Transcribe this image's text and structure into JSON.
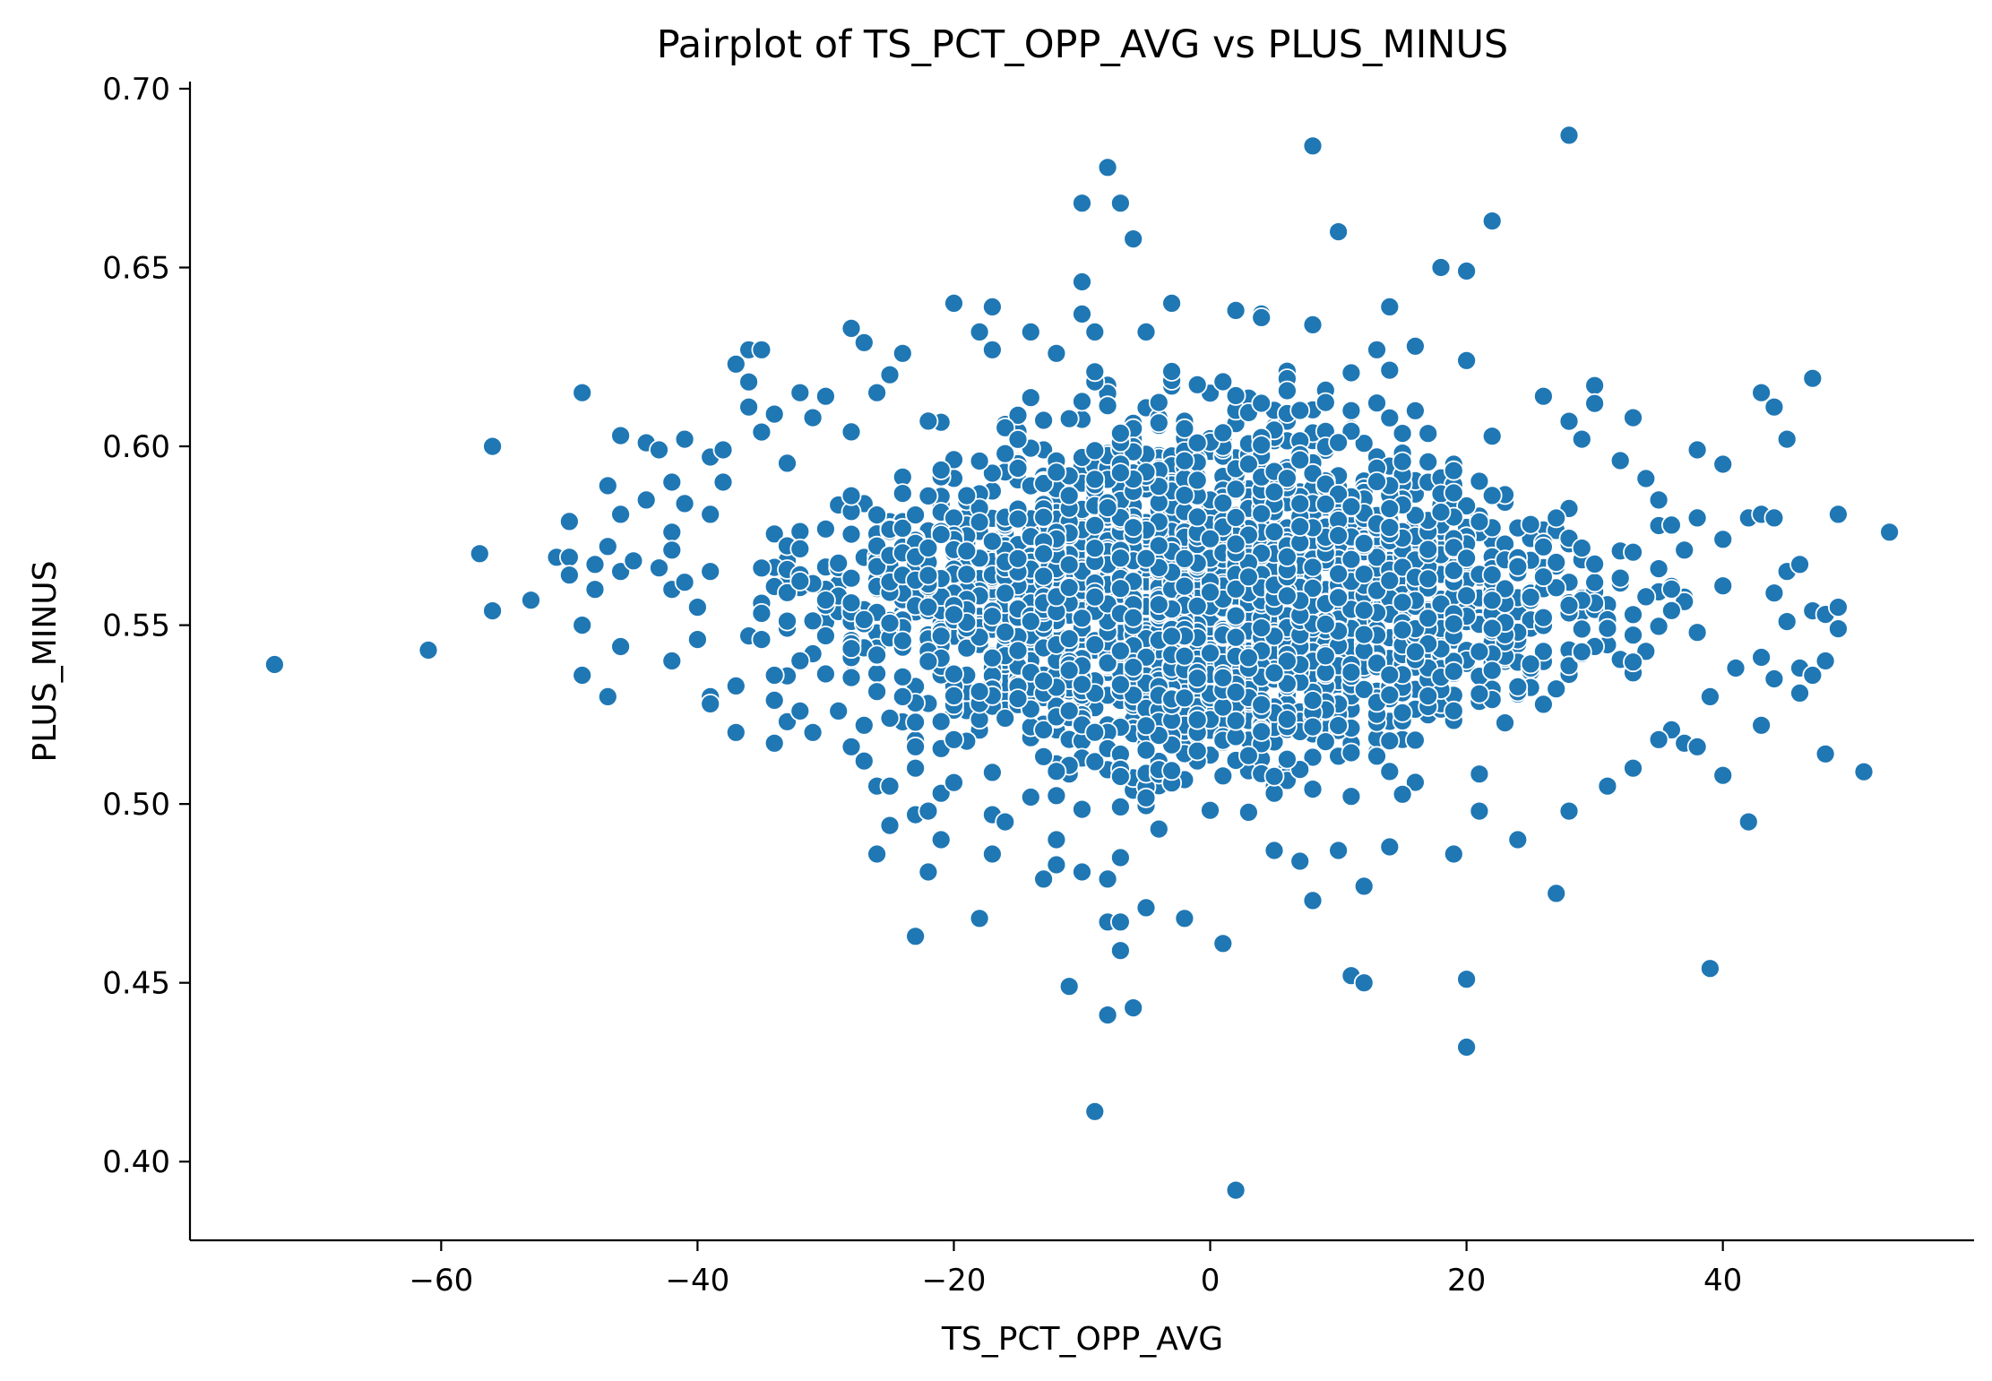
{
  "chart_data": {
    "type": "scatter",
    "title": "Pairplot of TS_PCT_OPP_AVG vs PLUS_MINUS",
    "xlabel": "TS_PCT_OPP_AVG",
    "ylabel": "PLUS_MINUS",
    "xlim": [
      -79.6,
      59.6
    ],
    "ylim": [
      0.378,
      0.702
    ],
    "xticks": [
      -60,
      -40,
      -20,
      0,
      20,
      40
    ],
    "xtick_labels": [
      "−60",
      "−40",
      "−20",
      "0",
      "20",
      "40"
    ],
    "yticks": [
      0.4,
      0.45,
      0.5,
      0.55,
      0.6,
      0.65,
      0.7
    ],
    "ytick_labels": [
      "0.40",
      "0.45",
      "0.50",
      "0.55",
      "0.60",
      "0.65",
      "0.70"
    ],
    "grid": false,
    "marker_color": "#1f77b4",
    "marker_edge_color": "#ffffff",
    "points_note_cluster": {
      "x_range": [
        -35,
        38
      ],
      "y_center": 0.557,
      "y_spread": 0.03,
      "count_estimate": 2600
    },
    "points": [
      [
        -73,
        0.539
      ],
      [
        -61,
        0.543
      ],
      [
        -57,
        0.57
      ],
      [
        -56,
        0.6
      ],
      [
        -56,
        0.554
      ],
      [
        -53,
        0.557
      ],
      [
        -51,
        0.569
      ],
      [
        -50,
        0.579
      ],
      [
        -50,
        0.569
      ],
      [
        -50,
        0.564
      ],
      [
        -49,
        0.615
      ],
      [
        -49,
        0.55
      ],
      [
        -49,
        0.536
      ],
      [
        -48,
        0.567
      ],
      [
        -48,
        0.56
      ],
      [
        -47,
        0.589
      ],
      [
        -47,
        0.572
      ],
      [
        -47,
        0.53
      ],
      [
        -46,
        0.603
      ],
      [
        -46,
        0.581
      ],
      [
        -46,
        0.565
      ],
      [
        -46,
        0.544
      ],
      [
        -45,
        0.568
      ],
      [
        -44,
        0.585
      ],
      [
        -44,
        0.601
      ],
      [
        -43,
        0.599
      ],
      [
        -43,
        0.566
      ],
      [
        -42,
        0.59
      ],
      [
        -42,
        0.576
      ],
      [
        -42,
        0.571
      ],
      [
        -42,
        0.56
      ],
      [
        -42,
        0.54
      ],
      [
        -41,
        0.602
      ],
      [
        -41,
        0.584
      ],
      [
        -41,
        0.562
      ],
      [
        -40,
        0.555
      ],
      [
        -40,
        0.546
      ],
      [
        -39,
        0.597
      ],
      [
        -39,
        0.581
      ],
      [
        -39,
        0.565
      ],
      [
        -39,
        0.53
      ],
      [
        -39,
        0.528
      ],
      [
        -38,
        0.599
      ],
      [
        -38,
        0.59
      ],
      [
        -37,
        0.623
      ],
      [
        -37,
        0.533
      ],
      [
        -37,
        0.52
      ],
      [
        -36,
        0.627
      ],
      [
        -36,
        0.618
      ],
      [
        -36,
        0.611
      ],
      [
        -36,
        0.547
      ],
      [
        -35,
        0.627
      ],
      [
        -35,
        0.604
      ],
      [
        -35,
        0.546
      ],
      [
        -34,
        0.609
      ],
      [
        -34,
        0.536
      ],
      [
        -34,
        0.529
      ],
      [
        -34,
        0.517
      ],
      [
        -33,
        0.523
      ],
      [
        -32,
        0.615
      ],
      [
        -32,
        0.526
      ],
      [
        -31,
        0.608
      ],
      [
        -31,
        0.52
      ],
      [
        -30,
        0.614
      ],
      [
        -29,
        0.526
      ],
      [
        -28,
        0.633
      ],
      [
        -28,
        0.516
      ],
      [
        -27,
        0.629
      ],
      [
        -27,
        0.522
      ],
      [
        -27,
        0.512
      ],
      [
        -26,
        0.615
      ],
      [
        -26,
        0.505
      ],
      [
        -26,
        0.486
      ],
      [
        -25,
        0.62
      ],
      [
        -25,
        0.524
      ],
      [
        -25,
        0.505
      ],
      [
        -25,
        0.494
      ],
      [
        -24,
        0.626
      ],
      [
        -24,
        0.53
      ],
      [
        -23,
        0.516
      ],
      [
        -23,
        0.51
      ],
      [
        -23,
        0.497
      ],
      [
        -23,
        0.463
      ],
      [
        -22,
        0.498
      ],
      [
        -22,
        0.481
      ],
      [
        -21,
        0.503
      ],
      [
        -21,
        0.49
      ],
      [
        -20,
        0.64
      ],
      [
        -20,
        0.518
      ],
      [
        -20,
        0.506
      ],
      [
        -18,
        0.632
      ],
      [
        -18,
        0.468
      ],
      [
        -17,
        0.639
      ],
      [
        -17,
        0.627
      ],
      [
        -17,
        0.497
      ],
      [
        -17,
        0.486
      ],
      [
        -16,
        0.495
      ],
      [
        -14,
        0.632
      ],
      [
        -13,
        0.479
      ],
      [
        -12,
        0.626
      ],
      [
        -12,
        0.49
      ],
      [
        -12,
        0.483
      ],
      [
        -11,
        0.449
      ],
      [
        -10,
        0.668
      ],
      [
        -10,
        0.646
      ],
      [
        -10,
        0.637
      ],
      [
        -10,
        0.481
      ],
      [
        -9,
        0.632
      ],
      [
        -9,
        0.414
      ],
      [
        -8,
        0.678
      ],
      [
        -8,
        0.479
      ],
      [
        -8,
        0.467
      ],
      [
        -8,
        0.441
      ],
      [
        -7,
        0.668
      ],
      [
        -7,
        0.467
      ],
      [
        -7,
        0.459
      ],
      [
        -7,
        0.485
      ],
      [
        -6,
        0.658
      ],
      [
        -6,
        0.443
      ],
      [
        -5,
        0.632
      ],
      [
        -5,
        0.471
      ],
      [
        -4,
        0.493
      ],
      [
        -3,
        0.64
      ],
      [
        -2,
        0.468
      ],
      [
        1,
        0.461
      ],
      [
        2,
        0.638
      ],
      [
        2,
        0.392
      ],
      [
        4,
        0.637
      ],
      [
        4,
        0.636
      ],
      [
        5,
        0.487
      ],
      [
        7,
        0.484
      ],
      [
        8,
        0.684
      ],
      [
        8,
        0.634
      ],
      [
        8,
        0.473
      ],
      [
        10,
        0.66
      ],
      [
        10,
        0.487
      ],
      [
        11,
        0.452
      ],
      [
        12,
        0.45
      ],
      [
        12,
        0.477
      ],
      [
        13,
        0.627
      ],
      [
        14,
        0.639
      ],
      [
        14,
        0.488
      ],
      [
        16,
        0.628
      ],
      [
        18,
        0.65
      ],
      [
        19,
        0.486
      ],
      [
        20,
        0.649
      ],
      [
        20,
        0.624
      ],
      [
        20,
        0.451
      ],
      [
        20,
        0.432
      ],
      [
        21,
        0.498
      ],
      [
        22,
        0.663
      ],
      [
        24,
        0.49
      ],
      [
        26,
        0.614
      ],
      [
        27,
        0.475
      ],
      [
        28,
        0.687
      ],
      [
        28,
        0.607
      ],
      [
        28,
        0.498
      ],
      [
        29,
        0.602
      ],
      [
        30,
        0.617
      ],
      [
        30,
        0.612
      ],
      [
        31,
        0.505
      ],
      [
        32,
        0.596
      ],
      [
        33,
        0.608
      ],
      [
        33,
        0.51
      ],
      [
        34,
        0.591
      ],
      [
        35,
        0.585
      ],
      [
        35,
        0.518
      ],
      [
        36,
        0.578
      ],
      [
        37,
        0.517
      ],
      [
        38,
        0.599
      ],
      [
        38,
        0.58
      ],
      [
        38,
        0.516
      ],
      [
        39,
        0.53
      ],
      [
        39,
        0.454
      ],
      [
        40,
        0.595
      ],
      [
        40,
        0.574
      ],
      [
        40,
        0.561
      ],
      [
        40,
        0.508
      ],
      [
        41,
        0.538
      ],
      [
        42,
        0.58
      ],
      [
        42,
        0.495
      ],
      [
        43,
        0.615
      ],
      [
        43,
        0.581
      ],
      [
        43,
        0.541
      ],
      [
        43,
        0.522
      ],
      [
        44,
        0.611
      ],
      [
        44,
        0.58
      ],
      [
        44,
        0.559
      ],
      [
        44,
        0.535
      ],
      [
        45,
        0.602
      ],
      [
        45,
        0.565
      ],
      [
        45,
        0.551
      ],
      [
        46,
        0.567
      ],
      [
        46,
        0.538
      ],
      [
        46,
        0.531
      ],
      [
        47,
        0.619
      ],
      [
        47,
        0.554
      ],
      [
        47,
        0.536
      ],
      [
        48,
        0.553
      ],
      [
        48,
        0.54
      ],
      [
        48,
        0.514
      ],
      [
        49,
        0.581
      ],
      [
        49,
        0.555
      ],
      [
        49,
        0.549
      ],
      [
        51,
        0.509
      ],
      [
        53,
        0.576
      ]
    ]
  }
}
